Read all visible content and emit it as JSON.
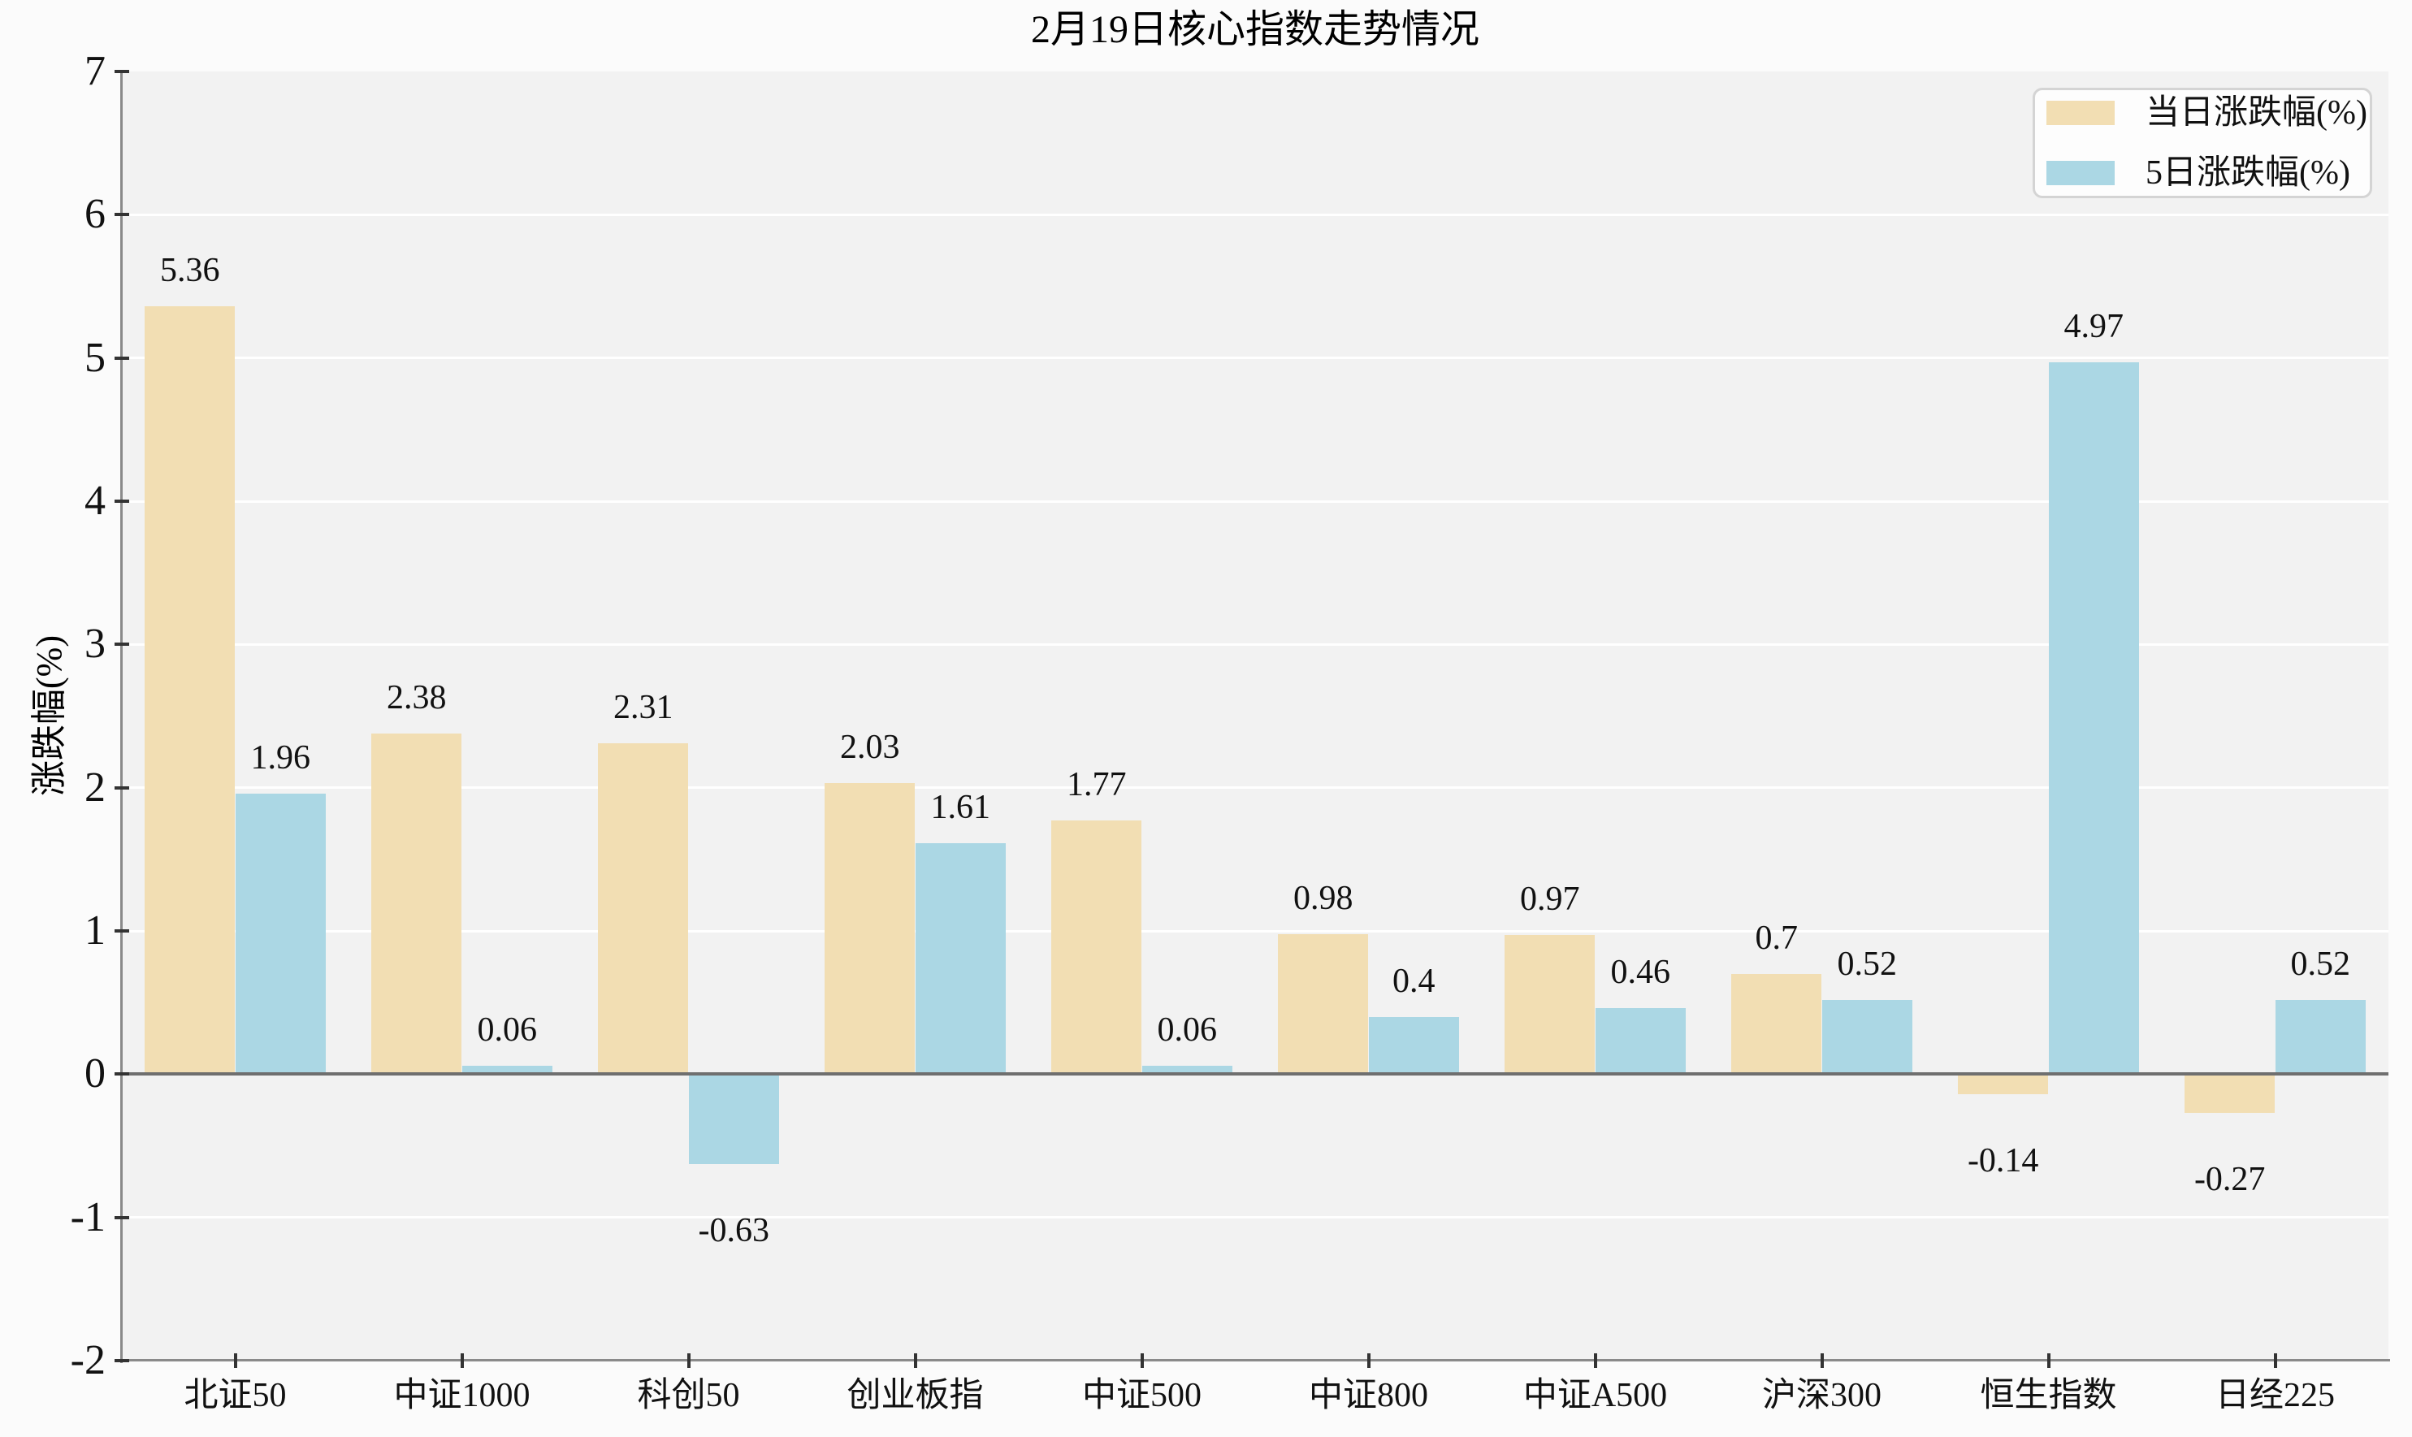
{
  "chart_data": {
    "type": "bar",
    "title": "2月19日核心指数走势情况",
    "xlabel": "",
    "ylabel": "涨跌幅(%)",
    "categories": [
      "北证50",
      "中证1000",
      "科创50",
      "创业板指",
      "中证500",
      "中证800",
      "中证A500",
      "沪深300",
      "恒生指数",
      "日经225"
    ],
    "series": [
      {
        "name": "当日涨跌幅(%)",
        "color": "#F2DEB3",
        "values": [
          5.36,
          2.38,
          2.31,
          2.03,
          1.77,
          0.98,
          0.97,
          0.7,
          -0.14,
          -0.27
        ],
        "labels": [
          "5.36",
          "2.38",
          "2.31",
          "2.03",
          "1.77",
          "0.98",
          "0.97",
          "0.7",
          "-0.14",
          "-0.27"
        ]
      },
      {
        "name": "5日涨跌幅(%)",
        "color": "#ABD7E4",
        "values": [
          1.96,
          0.06,
          -0.63,
          1.61,
          0.06,
          0.4,
          0.46,
          0.52,
          4.97,
          0.52
        ],
        "labels": [
          "1.96",
          "0.06",
          "-0.63",
          "1.61",
          "0.06",
          "0.4",
          "0.46",
          "0.52",
          "4.97",
          "0.52"
        ]
      }
    ],
    "ylim": [
      -2,
      7
    ],
    "yticks": [
      -2,
      -1,
      0,
      1,
      2,
      3,
      4,
      5,
      6,
      7
    ],
    "ytick_labels": [
      "-2",
      "-1",
      "0",
      "1",
      "2",
      "3",
      "4",
      "5",
      "6",
      "7"
    ],
    "grid": true,
    "legend_position": "upper right",
    "colors": {
      "plot_background": "#F2F2F2",
      "figure_background": "#FBFBFB",
      "gridline": "#FFFFFF",
      "zero_line": "#6F6F6F",
      "axis_spine": "#8A8A8A",
      "tick_mark": "#333333",
      "text": "#111111"
    }
  }
}
